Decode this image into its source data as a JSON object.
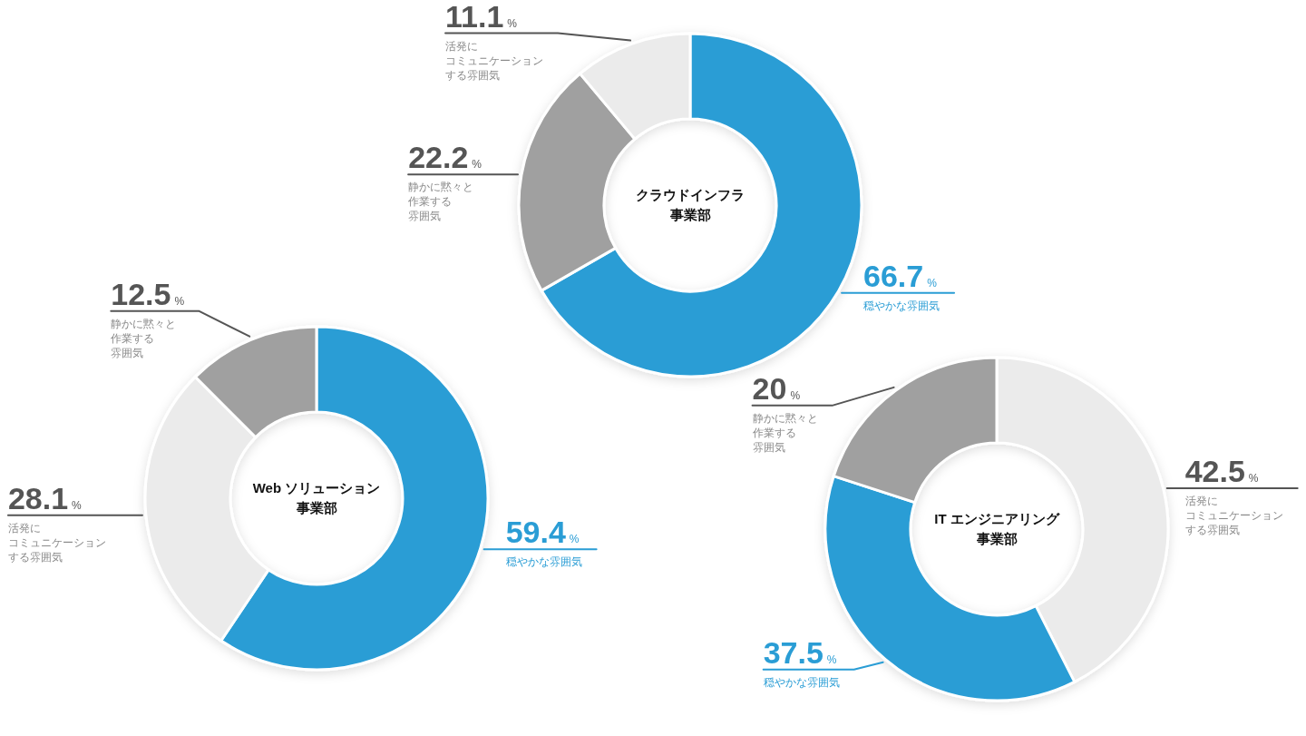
{
  "chart_data": [
    {
      "type": "donut",
      "title": "クラウドインフラ事業部",
      "categories": [
        "穏やかな雰囲気",
        "静かに黙々と作業する雰囲気",
        "活発にコミュニケーションする雰囲気"
      ],
      "values": [
        66.7,
        22.2,
        11.1
      ],
      "colors": [
        "#2a9dd5",
        "#a0a0a0",
        "#ebebeb"
      ],
      "value_labels": [
        "66.7%",
        "22.2%",
        "11.1%"
      ]
    },
    {
      "type": "donut",
      "title": "Web ソリューション事業部",
      "categories": [
        "穏やかな雰囲気",
        "活発にコミュニケーションする雰囲気",
        "静かに黙々と作業する雰囲気"
      ],
      "values": [
        59.4,
        28.1,
        12.5
      ],
      "colors": [
        "#2a9dd5",
        "#ebebeb",
        "#a0a0a0"
      ],
      "value_labels": [
        "59.4%",
        "28.1%",
        "12.5%"
      ]
    },
    {
      "type": "donut",
      "title": "IT エンジニアリング事業部",
      "categories": [
        "活発にコミュニケーションする雰囲気",
        "穏やかな雰囲気",
        "静かに黙々と作業する雰囲気"
      ],
      "values": [
        42.5,
        37.5,
        20
      ],
      "colors": [
        "#ebebeb",
        "#2a9dd5",
        "#a0a0a0"
      ],
      "value_labels": [
        "42.5%",
        "37.5%",
        "20%"
      ]
    }
  ]
}
